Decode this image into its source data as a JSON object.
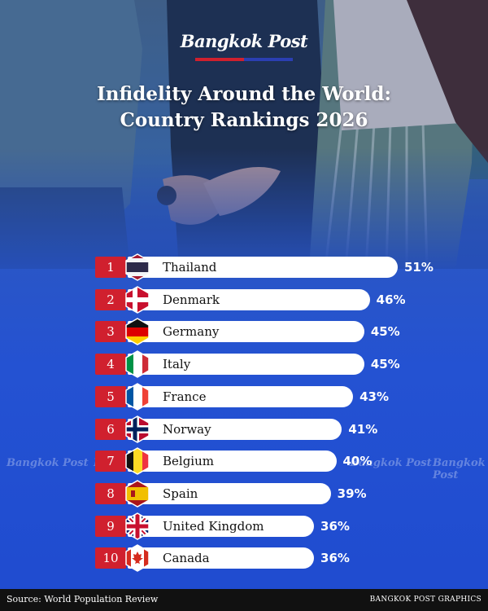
{
  "brand": "Bangkok Post",
  "title_line1": "Infidelity Around the World:",
  "title_line2": "Country Rankings 2026",
  "watermark_text": "Bangkok Post",
  "footer": {
    "source": "Source: World Population Review",
    "credit": "BANGKOK POST GRAPHICS"
  },
  "colors": {
    "accent_red": "#d0202e",
    "background_blue": "#2452d2",
    "bar_white": "#ffffff"
  },
  "chart_data": {
    "type": "bar",
    "orientation": "horizontal",
    "unit": "%",
    "xlim": [
      0,
      51
    ],
    "categories": [
      "Thailand",
      "Denmark",
      "Germany",
      "Italy",
      "France",
      "Norway",
      "Belgium",
      "Spain",
      "United Kingdom",
      "Canada"
    ],
    "ranks": [
      "1",
      "2",
      "3",
      "4",
      "5",
      "6",
      "7",
      "8",
      "9",
      "10"
    ],
    "values": [
      51,
      46,
      45,
      45,
      43,
      41,
      40,
      39,
      36,
      36
    ],
    "labels": [
      "51%",
      "46%",
      "45%",
      "45%",
      "43%",
      "41%",
      "40%",
      "39%",
      "36%",
      "36%"
    ],
    "flag_icons": [
      "thailand-flag-icon",
      "denmark-flag-icon",
      "germany-flag-icon",
      "italy-flag-icon",
      "france-flag-icon",
      "norway-flag-icon",
      "belgium-flag-icon",
      "spain-flag-icon",
      "united-kingdom-flag-icon",
      "canada-flag-icon"
    ]
  }
}
